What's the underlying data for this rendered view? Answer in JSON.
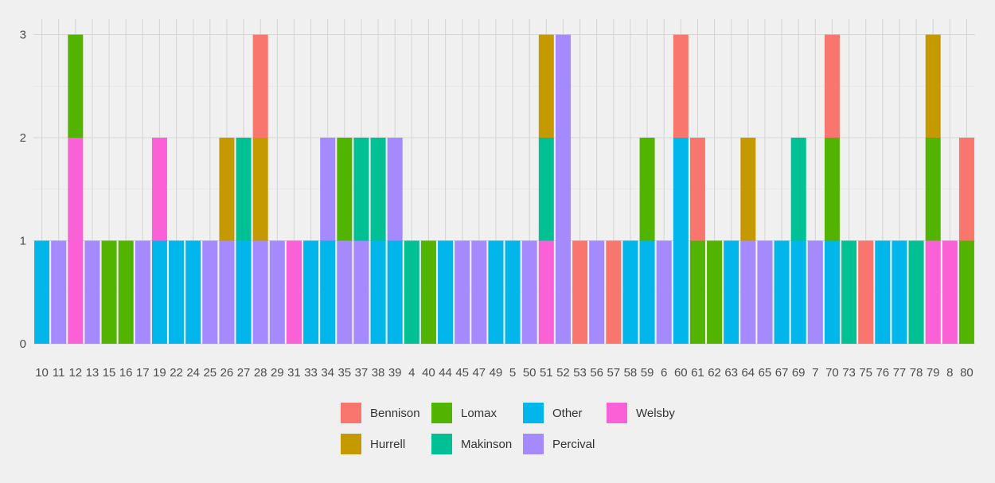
{
  "chart_data": {
    "type": "bar",
    "stacked": true,
    "title": "",
    "xlabel": "",
    "ylabel": "",
    "ylim": [
      0,
      3.05
    ],
    "y_ticks": [
      0,
      1,
      2,
      3
    ],
    "grid": true,
    "legend_position": "bottom",
    "categories": [
      "10",
      "11",
      "12",
      "13",
      "15",
      "16",
      "17",
      "19",
      "22",
      "24",
      "25",
      "26",
      "27",
      "28",
      "29",
      "31",
      "33",
      "34",
      "35",
      "37",
      "38",
      "39",
      "4",
      "40",
      "44",
      "45",
      "47",
      "49",
      "5",
      "50",
      "51",
      "52",
      "53",
      "56",
      "57",
      "58",
      "59",
      "6",
      "60",
      "61",
      "62",
      "63",
      "64",
      "65",
      "67",
      "69",
      "7",
      "70",
      "73",
      "75",
      "76",
      "77",
      "78",
      "79",
      "8",
      "80"
    ],
    "stack_order": [
      "Other",
      "Percival",
      "Welsby",
      "Lomax",
      "Makinson",
      "Hurrell",
      "Bennison"
    ],
    "series": [
      {
        "name": "Bennison",
        "color": "#F8766D",
        "values": [
          0,
          0,
          0,
          0,
          0,
          0,
          0,
          0,
          0,
          0,
          0,
          0,
          0,
          1,
          0,
          0,
          0,
          0,
          0,
          0,
          0,
          0,
          0,
          0,
          0,
          0,
          0,
          0,
          0,
          0,
          0,
          0,
          1,
          0,
          1,
          0,
          0,
          0,
          1,
          1,
          0,
          0,
          0,
          0,
          0,
          0,
          0,
          1,
          0,
          1,
          0,
          0,
          0,
          0,
          0,
          1
        ]
      },
      {
        "name": "Hurrell",
        "color": "#C49A00",
        "values": [
          0,
          0,
          0,
          0,
          0,
          0,
          0,
          0,
          0,
          0,
          0,
          1,
          0,
          1,
          0,
          0,
          0,
          0,
          0,
          0,
          0,
          0,
          0,
          0,
          0,
          0,
          0,
          0,
          0,
          0,
          1,
          0,
          0,
          0,
          0,
          0,
          0,
          0,
          0,
          0,
          0,
          0,
          1,
          0,
          0,
          0,
          0,
          0,
          0,
          0,
          0,
          0,
          0,
          1,
          0,
          0
        ]
      },
      {
        "name": "Lomax",
        "color": "#53B400",
        "values": [
          0,
          0,
          1,
          0,
          1,
          1,
          0,
          0,
          0,
          0,
          0,
          0,
          0,
          0,
          0,
          0,
          0,
          0,
          1,
          0,
          0,
          0,
          0,
          1,
          0,
          0,
          0,
          0,
          0,
          0,
          0,
          0,
          0,
          0,
          0,
          0,
          1,
          0,
          0,
          1,
          1,
          0,
          0,
          0,
          0,
          0,
          0,
          1,
          0,
          0,
          0,
          0,
          0,
          1,
          0,
          1
        ]
      },
      {
        "name": "Makinson",
        "color": "#00C094",
        "values": [
          0,
          0,
          0,
          0,
          0,
          0,
          0,
          0,
          0,
          0,
          0,
          0,
          1,
          0,
          0,
          0,
          0,
          0,
          0,
          1,
          1,
          0,
          1,
          0,
          0,
          0,
          0,
          0,
          0,
          0,
          1,
          0,
          0,
          0,
          0,
          0,
          0,
          0,
          0,
          0,
          0,
          0,
          0,
          0,
          0,
          1,
          0,
          0,
          1,
          0,
          0,
          0,
          1,
          0,
          0,
          0
        ]
      },
      {
        "name": "Other",
        "color": "#00B6EB",
        "values": [
          1,
          0,
          0,
          0,
          0,
          0,
          0,
          1,
          1,
          1,
          0,
          0,
          1,
          0,
          0,
          0,
          1,
          1,
          0,
          0,
          1,
          1,
          0,
          0,
          1,
          0,
          0,
          1,
          1,
          0,
          0,
          0,
          0,
          0,
          0,
          1,
          1,
          0,
          2,
          0,
          0,
          1,
          0,
          0,
          1,
          1,
          0,
          1,
          0,
          0,
          1,
          1,
          0,
          0,
          0,
          0
        ]
      },
      {
        "name": "Percival",
        "color": "#A58AFF",
        "values": [
          0,
          1,
          0,
          1,
          0,
          0,
          1,
          0,
          0,
          0,
          1,
          1,
          0,
          1,
          1,
          0,
          0,
          1,
          1,
          1,
          0,
          1,
          0,
          0,
          0,
          1,
          1,
          0,
          0,
          1,
          0,
          3,
          0,
          1,
          0,
          0,
          0,
          1,
          0,
          0,
          0,
          0,
          1,
          1,
          0,
          0,
          1,
          0,
          0,
          0,
          0,
          0,
          0,
          0,
          0,
          0
        ]
      },
      {
        "name": "Welsby",
        "color": "#FB61D7",
        "values": [
          0,
          0,
          2,
          0,
          0,
          0,
          0,
          1,
          0,
          0,
          0,
          0,
          0,
          0,
          0,
          1,
          0,
          0,
          0,
          0,
          0,
          0,
          0,
          0,
          0,
          0,
          0,
          0,
          0,
          0,
          1,
          0,
          0,
          0,
          0,
          0,
          0,
          0,
          0,
          0,
          0,
          0,
          0,
          0,
          0,
          0,
          0,
          0,
          0,
          0,
          0,
          0,
          0,
          1,
          1,
          0
        ]
      }
    ],
    "legend": {
      "rows": [
        [
          "Bennison",
          "Lomax",
          "Other",
          "Welsby"
        ],
        [
          "Hurrell",
          "Makinson",
          "Percival"
        ]
      ]
    }
  }
}
